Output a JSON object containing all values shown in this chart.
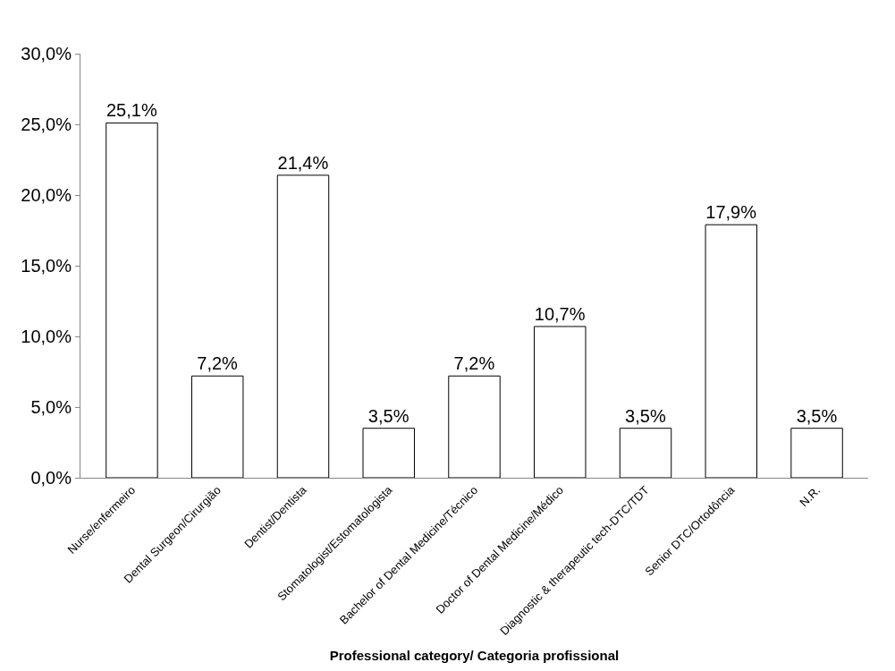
{
  "chart_data": {
    "type": "bar",
    "xlabel": "Professional category/ Categoria profissional",
    "categories": [
      "Nurse/enfermeiro",
      "Dental Surgeon/Cirurgião",
      "Dentist/Dentista",
      "Stomatologist/Estomatologista",
      "Bachelor of Dental Medicine/Técnico",
      "Doctor of Dental Medicine/Médico",
      "Diagnostic & therapeutic tech-DTC/TDT",
      "Senior DTC/Ortodôncia",
      "N.R."
    ],
    "values": [
      25.1,
      7.2,
      21.4,
      3.5,
      7.2,
      10.7,
      3.5,
      17.9,
      3.5
    ],
    "value_labels": [
      "25,1%",
      "7,2%",
      "21,4%",
      "3,5%",
      "7,2%",
      "10,7%",
      "3,5%",
      "17,9%",
      "3,5%"
    ],
    "color": "#ffffff",
    "ylim": [
      0,
      30
    ],
    "yticks": [
      {
        "value": 0,
        "label": "0,0%"
      },
      {
        "value": 5,
        "label": "5,0%"
      },
      {
        "value": 10,
        "label": "10,0%"
      },
      {
        "value": 15,
        "label": "15,0%"
      },
      {
        "value": 20,
        "label": "20,0%"
      },
      {
        "value": 25,
        "label": "25,0%"
      },
      {
        "value": 30,
        "label": "30,0%"
      }
    ],
    "legend": false
  }
}
